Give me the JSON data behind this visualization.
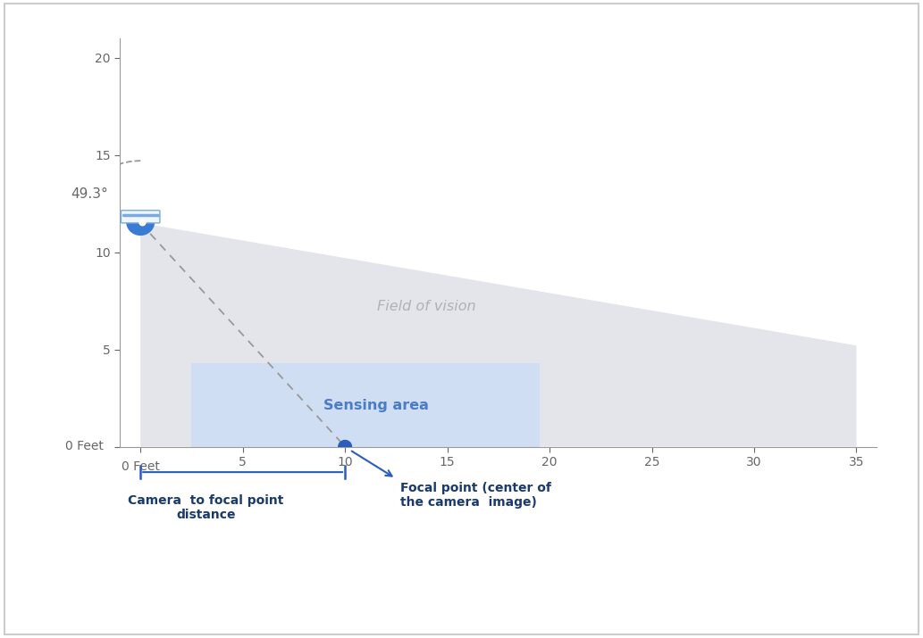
{
  "bg_color": "#ffffff",
  "border_color": "#cccccc",
  "axis_color": "#999999",
  "tick_label_color": "#666666",
  "xlim": [
    -1,
    36
  ],
  "ylim": [
    0,
    21
  ],
  "xticks": [
    0,
    5,
    10,
    15,
    20,
    25,
    30,
    35
  ],
  "yticks": [
    0,
    5,
    10,
    15,
    20
  ],
  "camera_x": 0,
  "camera_y": 11.5,
  "focal_x": 10,
  "focal_y": 0,
  "fov_color": "#e0e0e8",
  "fov_alpha": 0.85,
  "sensing_color": "#c8dcf5",
  "sensing_alpha": 0.75,
  "sensing_x1": 2.5,
  "sensing_y1": 0,
  "sensing_x2": 19.5,
  "sensing_y2": 4.3,
  "field_of_vision_label": "Field of vision",
  "sensing_area_label": "Sensing area",
  "angle_label": "49.3°",
  "label1_line1": "Camera  to focal point",
  "label1_line2": "distance",
  "label2_line1": "Focal point (center of",
  "label2_line2": "the camera  image)",
  "label1_color": "#1a3a6b",
  "label2_color": "#1a3a6b",
  "fov_label_color": "#b0b0b8",
  "sensing_label_color": "#4a7cc7",
  "dashed_color": "#999999",
  "focal_dot_color": "#2b5cbf",
  "arrow_color": "#2b5cbf",
  "camera_body_color": "#3a7bd5",
  "camera_top_color": "#f0f5ff",
  "camera_stripe_color": "#7aabdf",
  "bracket_color": "#2b5cbf"
}
